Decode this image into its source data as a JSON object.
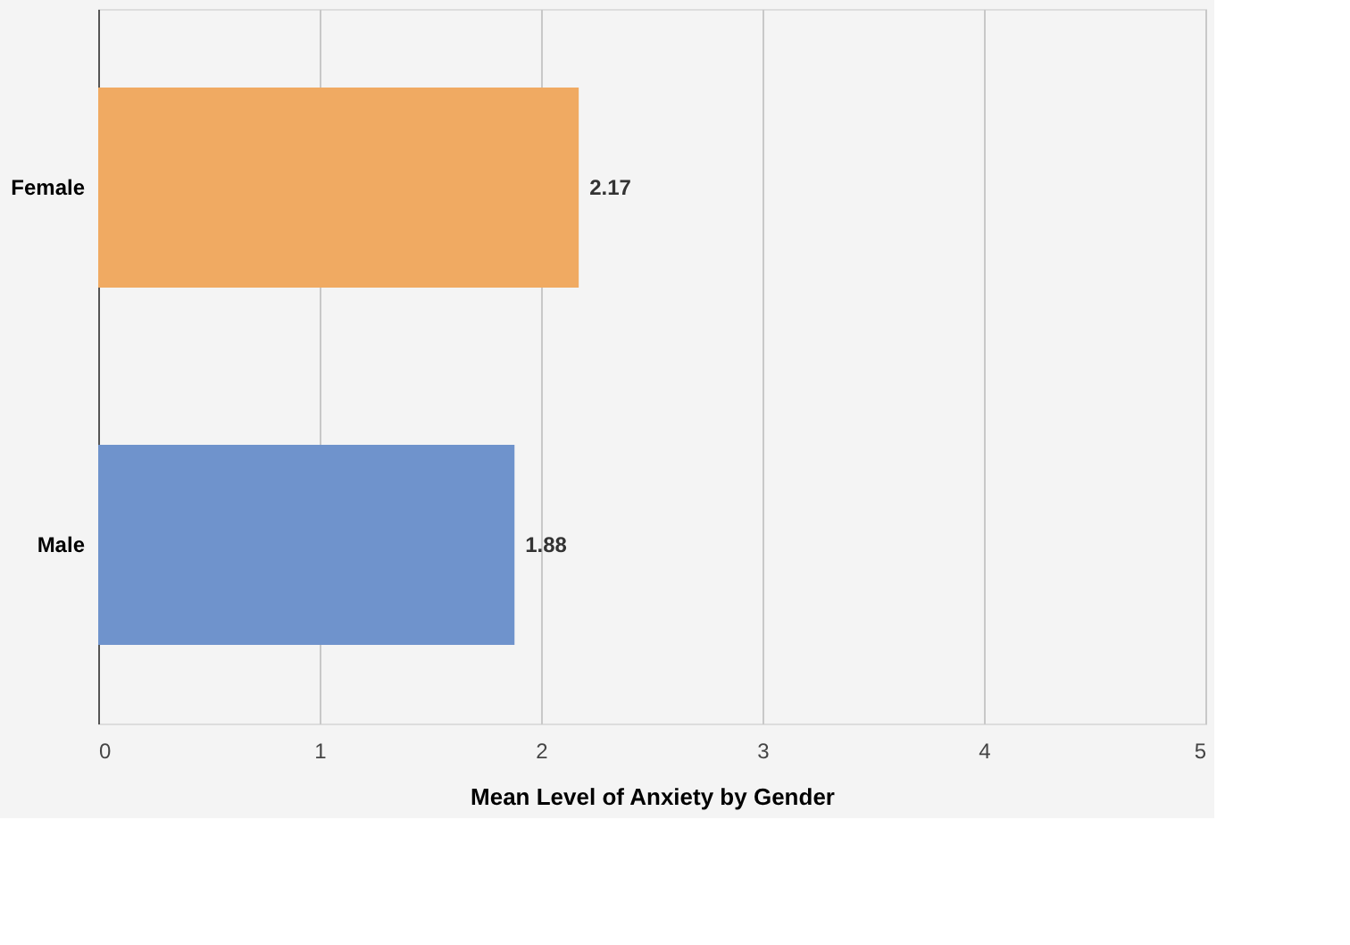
{
  "chart_data": {
    "type": "bar",
    "orientation": "horizontal",
    "xlabel": "Mean Level of Anxiety by Gender",
    "categories": [
      "Female",
      "Male"
    ],
    "values": [
      2.17,
      1.88
    ],
    "colors": [
      "#f0aa62",
      "#6f93cc"
    ],
    "xlim": [
      0,
      5
    ],
    "xticks": [
      0,
      1,
      2,
      3,
      4,
      5
    ],
    "grid": "x",
    "data_labels": true
  }
}
